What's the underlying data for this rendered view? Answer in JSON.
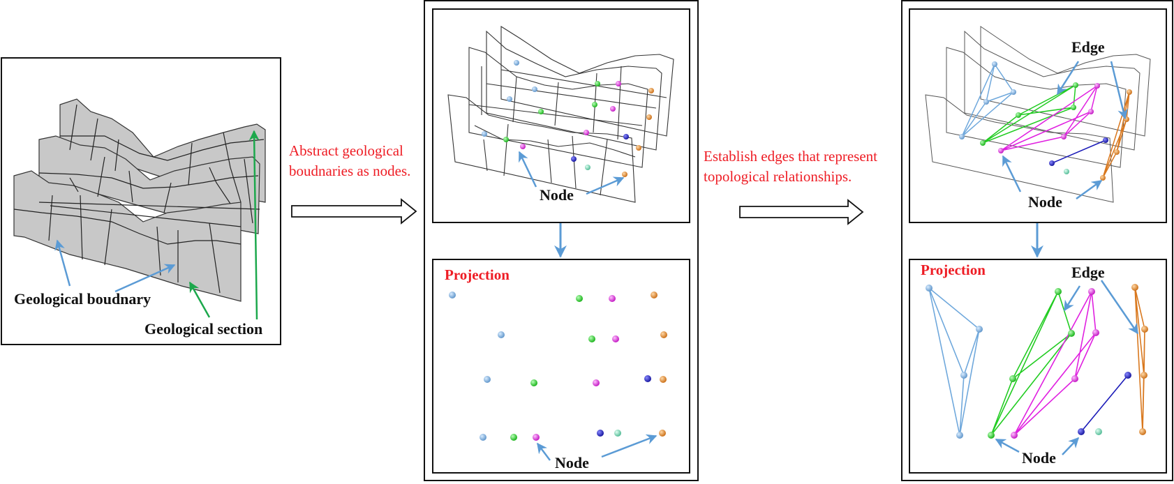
{
  "colors": {
    "frame": "#111111",
    "section_fill": "#c8c8c8",
    "boundary_line": "#222222",
    "arrow_blue": "#5b9bd5",
    "arrow_green": "#1ca84c",
    "caption_red": "#ee1c24",
    "node_lightblue": "#6fa8dc",
    "node_green": "#22cc22",
    "node_magenta": "#e020e0",
    "node_orange": "#d9781e",
    "node_navy": "#1a1ab8",
    "node_teal": "#66ccaa"
  },
  "panel1": {
    "label_boundary": "Geological boudnary",
    "label_section": "Geological section"
  },
  "step1": {
    "caption_line1": "Abstract geological",
    "caption_line2": "boudnaries as nodes."
  },
  "panel2": {
    "top_label_node": "Node",
    "projection_title": "Projection",
    "bottom_label_node": "Node"
  },
  "step2": {
    "caption_line1": "Establish edges that represent",
    "caption_line2": "topological relationships."
  },
  "panel3": {
    "top_label_edge": "Edge",
    "top_label_node": "Node",
    "projection_title": "Projection",
    "bottom_label_edge": "Edge",
    "bottom_label_node": "Node"
  }
}
